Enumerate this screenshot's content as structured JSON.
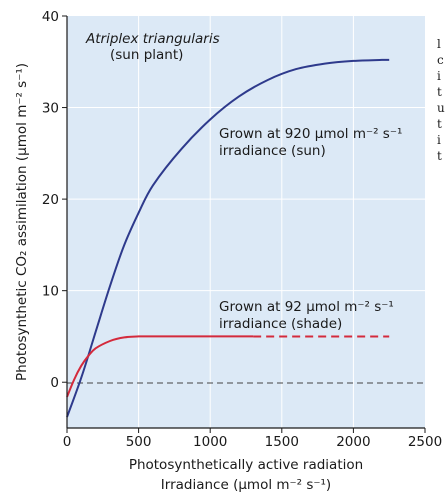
{
  "chart_data": {
    "type": "line",
    "title": "",
    "xlabel_line1": "Photosynthetically active radiation",
    "xlabel_line2": "Irradiance (μmol m⁻² s⁻¹)",
    "ylabel": "Photosynthetic CO₂ assimilation (μmol m⁻² s⁻¹)",
    "xlim": [
      0,
      2500
    ],
    "ylim": [
      -5,
      40
    ],
    "x_ticks": [
      "0",
      "500",
      "1000",
      "1500",
      "2000",
      "2500"
    ],
    "y_ticks": [
      "0",
      "10",
      "20",
      "30",
      "40"
    ],
    "grid": true,
    "zero_line": "dashed",
    "annotations": {
      "species": "Atriplex triangularis",
      "species_note": "(sun plant)",
      "sun_line1": "Grown at 920 μmol m⁻² s⁻¹",
      "sun_line2": "irradiance (sun)",
      "shade_line1": "Grown at 92 μmol m⁻² s⁻¹",
      "shade_line2": "irradiance (shade)"
    },
    "series": [
      {
        "id": "sun",
        "color": "#2e3a8c",
        "x": [
          0,
          100,
          200,
          300,
          400,
          500,
          600,
          800,
          1000,
          1200,
          1400,
          1600,
          1800,
          2000,
          2200,
          2250
        ],
        "y": [
          -3.8,
          0.5,
          5.5,
          10.5,
          15,
          18.5,
          21.5,
          25.5,
          28.7,
          31.2,
          33.0,
          34.2,
          34.8,
          35.1,
          35.2,
          35.2
        ]
      },
      {
        "id": "shade",
        "color": "#d42a3c",
        "x": [
          0,
          50,
          100,
          150,
          200,
          300,
          400,
          500,
          700,
          1000,
          1300
        ],
        "y": [
          -1.6,
          0.3,
          1.8,
          2.9,
          3.7,
          4.5,
          4.9,
          5.0,
          5.0,
          5.0,
          5.0
        ],
        "dashed_extension": {
          "x": [
            1300,
            2250
          ],
          "y": [
            5.0,
            5.0
          ]
        }
      }
    ]
  },
  "side_text": [
    "l",
    "c",
    "i",
    "t",
    "u",
    "t",
    "i",
    "t"
  ]
}
